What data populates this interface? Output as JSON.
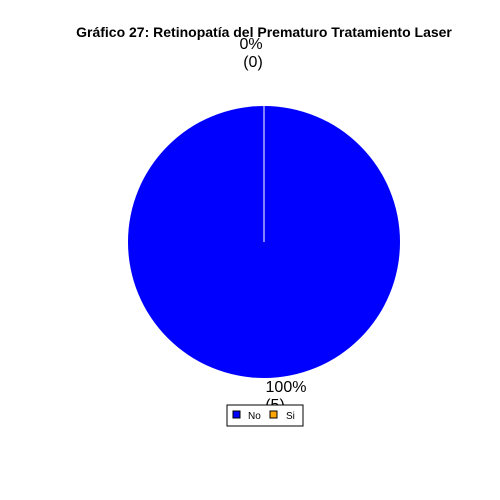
{
  "chart_data": {
    "type": "pie",
    "title": "Gráfico 27: Retinopatía del Prematuro Tratamiento Laser",
    "categories": [
      "No",
      "Si"
    ],
    "values": [
      5,
      0
    ],
    "percent_labels": [
      "100%",
      "0%"
    ],
    "count_labels": [
      "(5)",
      "(0)"
    ],
    "colors": [
      "#0000ff",
      "#ffa500"
    ],
    "legend": {
      "placement": "bottom",
      "entries": [
        "No",
        "Si"
      ]
    }
  }
}
